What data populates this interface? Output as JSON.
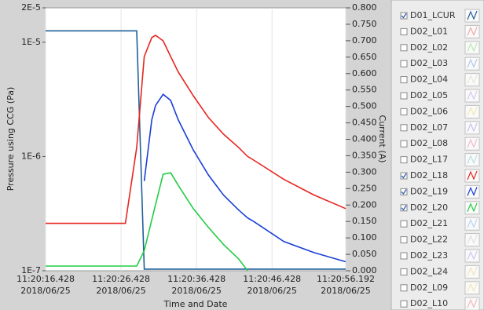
{
  "chart_data": {
    "type": "line",
    "y_label": "Pressure using CCG (Pa)",
    "y2_label": "Current (A)",
    "x_label": "Time and Date",
    "ylog": true,
    "grid": true,
    "x": [
      16.428,
      20,
      24,
      27,
      28.5,
      29.5,
      30.5,
      31,
      32,
      33,
      34,
      36,
      38,
      40,
      42,
      43.2,
      44,
      48,
      52,
      56.192
    ],
    "xlim": [
      16.428,
      56.192
    ],
    "xticks": [
      {
        "value": 16.428,
        "label": "11:20:16.428",
        "date": "2018/06/25"
      },
      {
        "value": 26.428,
        "label": "11:20:26.428",
        "date": "2018/06/25"
      },
      {
        "value": 36.428,
        "label": "11:20:36.428",
        "date": "2018/06/25"
      },
      {
        "value": 46.428,
        "label": "11:20:46.428",
        "date": "2018/06/25"
      },
      {
        "value": 56.192,
        "label": "11:20:56.192",
        "date": "2018/06/25"
      }
    ],
    "ylim": [
      1e-07,
      2e-05
    ],
    "yticks": [
      {
        "value": 2e-05,
        "label": "2E-5"
      },
      {
        "value": 1e-05,
        "label": "1E-5"
      },
      {
        "value": 1e-06,
        "label": "1E-6"
      },
      {
        "value": 1e-07,
        "label": "1E-7"
      }
    ],
    "y2lim": [
      0,
      0.8
    ],
    "y2ticks": [
      {
        "value": 0.8,
        "label": "0.800"
      },
      {
        "value": 0.75,
        "label": "0.750"
      },
      {
        "value": 0.7,
        "label": "0.700"
      },
      {
        "value": 0.65,
        "label": "0.650"
      },
      {
        "value": 0.6,
        "label": "0.600"
      },
      {
        "value": 0.55,
        "label": "0.550"
      },
      {
        "value": 0.5,
        "label": "0.500"
      },
      {
        "value": 0.45,
        "label": "0.450"
      },
      {
        "value": 0.4,
        "label": "0.400"
      },
      {
        "value": 0.35,
        "label": "0.350"
      },
      {
        "value": 0.3,
        "label": "0.300"
      },
      {
        "value": 0.25,
        "label": "0.250"
      },
      {
        "value": 0.2,
        "label": "0.200"
      },
      {
        "value": 0.15,
        "label": "0.150"
      },
      {
        "value": 0.1,
        "label": "0.100"
      },
      {
        "value": 0.05,
        "label": "0.050"
      },
      {
        "value": 0,
        "label": "0.000"
      }
    ],
    "series": [
      {
        "name": "D01_LCUR",
        "checked": true,
        "color": "#1f5f99",
        "axis": "y2",
        "values": [
          0.73,
          0.73,
          0.73,
          0.73,
          0.73,
          0.005,
          0.005,
          0.005,
          0.005,
          0.005,
          0.005,
          0.005,
          0.005,
          0.005,
          0.005,
          0.005,
          0.005,
          0.005,
          0.005,
          0.005
        ]
      },
      {
        "name": "D02_L01",
        "checked": false,
        "color": "#f2a8a8",
        "values": null
      },
      {
        "name": "D02_L02",
        "checked": false,
        "color": "#b8e8b0",
        "values": null
      },
      {
        "name": "D02_L03",
        "checked": false,
        "color": "#b0c8ee",
        "values": null
      },
      {
        "name": "D02_L04",
        "checked": false,
        "color": "#e6e6d8",
        "values": null
      },
      {
        "name": "D02_L05",
        "checked": false,
        "color": "#d8c8ee",
        "values": null
      },
      {
        "name": "D02_L06",
        "checked": false,
        "color": "#f0e8b0",
        "values": null
      },
      {
        "name": "D02_L07",
        "checked": false,
        "color": "#c8c0ee",
        "values": null
      },
      {
        "name": "D02_L08",
        "checked": false,
        "color": "#f0b8c8",
        "values": null
      },
      {
        "name": "D02_L17",
        "checked": false,
        "color": "#b8e0e0",
        "values": null
      },
      {
        "name": "D02_L18",
        "checked": true,
        "color": "#e8251f",
        "values": [
          2.6e-07,
          2.6e-07,
          2.6e-07,
          2.6e-07,
          1.2e-06,
          7.5e-06,
          1.1e-05,
          1.15e-05,
          1.03e-05,
          7.5e-06,
          5.5e-06,
          3.4e-06,
          2.2e-06,
          1.57e-06,
          1.2e-06,
          1e-06,
          9.3e-07,
          6.3e-07,
          4.6e-07,
          3.5e-07
        ]
      },
      {
        "name": "D02_L19",
        "checked": true,
        "color": "#1a3fd6",
        "values": [
          null,
          null,
          null,
          null,
          null,
          6.1e-07,
          2.1e-06,
          2.8e-06,
          3.5e-06,
          3.1e-06,
          2.1e-06,
          1.14e-06,
          6.9e-07,
          4.6e-07,
          3.4e-07,
          2.9e-07,
          2.7e-07,
          1.8e-07,
          1.44e-07,
          1.2e-07
        ]
      },
      {
        "name": "D02_L20",
        "checked": true,
        "color": "#22cc44",
        "values": [
          1.1e-07,
          1.1e-07,
          1.1e-07,
          1.1e-07,
          1.1e-07,
          1.5e-07,
          2.8e-07,
          3.8e-07,
          7e-07,
          7.2e-07,
          5.6e-07,
          3.5e-07,
          2.4e-07,
          1.7e-07,
          1.27e-07,
          1e-07,
          null,
          null,
          null,
          null
        ]
      },
      {
        "name": "D02_L21",
        "checked": false,
        "color": "#b8d4f0",
        "values": null
      },
      {
        "name": "D02_L22",
        "checked": false,
        "color": "#e0e0e0",
        "values": null
      },
      {
        "name": "D02_L23",
        "checked": false,
        "color": "#d0c8f0",
        "values": null
      },
      {
        "name": "D02_L24",
        "checked": false,
        "color": "#f0e6b8",
        "values": null
      },
      {
        "name": "D02_L09",
        "checked": false,
        "color": "#f0e8b8",
        "values": null
      },
      {
        "name": "D02_L10",
        "checked": false,
        "color": "#f0b8b8",
        "values": null
      }
    ]
  }
}
